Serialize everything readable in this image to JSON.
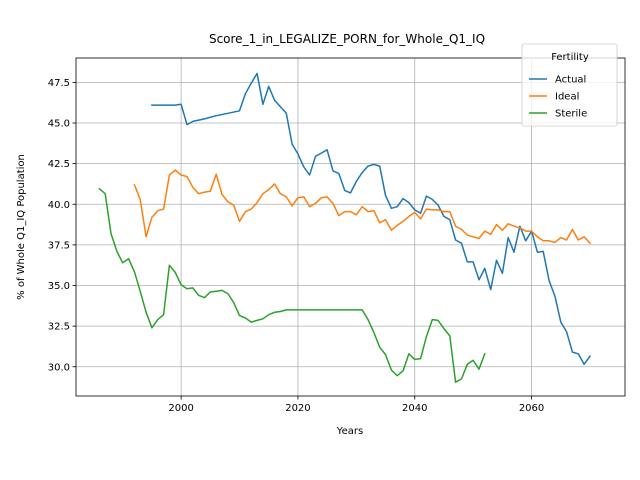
{
  "chart_data": {
    "type": "line",
    "title": "Score_1_in_LEGALIZE_PORN_for_Whole_Q1_IQ",
    "xlabel": "Years",
    "ylabel": "% of Whole Q1_IQ Population",
    "xlim": [
      1982,
      2076
    ],
    "ylim": [
      28.2,
      49.0
    ],
    "xticks": [
      2000,
      2020,
      2040,
      2060
    ],
    "yticks": [
      30.0,
      32.5,
      35.0,
      37.5,
      40.0,
      42.5,
      45.0,
      47.5
    ],
    "grid": true,
    "legend": {
      "title": "Fertility",
      "placement": "top-right"
    },
    "series": [
      {
        "name": "Actual",
        "color": "#1f77b4",
        "x": [
          1995,
          1996,
          1997,
          1998,
          1999,
          2000,
          2001,
          2002,
          2004,
          2006,
          2008,
          2010,
          2011,
          2012,
          2013,
          2014,
          2015,
          2016,
          2017,
          2018,
          2019,
          2020,
          2021,
          2022,
          2023,
          2024,
          2025,
          2026,
          2027,
          2028,
          2029,
          2030,
          2031,
          2032,
          2033,
          2034,
          2035,
          2036,
          2037,
          2038,
          2039,
          2040,
          2041,
          2042,
          2043,
          2044,
          2045,
          2046,
          2047,
          2048,
          2049,
          2050,
          2051,
          2052,
          2053,
          2054,
          2055,
          2056,
          2057,
          2058,
          2059,
          2060,
          2061,
          2062,
          2063,
          2064,
          2065,
          2066,
          2067,
          2068,
          2069,
          2070
        ],
        "y": [
          46.1,
          46.1,
          46.1,
          46.1,
          46.1,
          46.15,
          44.9,
          45.1,
          45.25,
          45.45,
          45.6,
          45.75,
          46.8,
          47.45,
          48.05,
          46.15,
          47.25,
          46.4,
          46.0,
          45.6,
          43.7,
          43.1,
          42.3,
          41.8,
          42.95,
          43.15,
          43.35,
          42.05,
          41.9,
          40.85,
          40.7,
          41.4,
          41.95,
          42.35,
          42.45,
          42.35,
          40.55,
          39.75,
          39.85,
          40.35,
          40.1,
          39.65,
          39.45,
          40.5,
          40.3,
          39.95,
          39.25,
          39.05,
          37.8,
          37.6,
          36.45,
          36.45,
          35.35,
          36.05,
          34.75,
          36.55,
          35.75,
          37.95,
          37.05,
          38.65,
          37.75,
          38.35,
          37.05,
          37.1,
          35.3,
          34.35,
          32.75,
          32.15,
          30.9,
          30.8,
          30.15,
          30.65
        ]
      },
      {
        "name": "Ideal",
        "color": "#ff7f0e",
        "x": [
          1992,
          1993,
          1994,
          1995,
          1996,
          1997,
          1998,
          1999,
          2000,
          2001,
          2002,
          2003,
          2004,
          2005,
          2006,
          2007,
          2008,
          2009,
          2010,
          2011,
          2012,
          2013,
          2014,
          2015,
          2016,
          2017,
          2018,
          2019,
          2020,
          2021,
          2022,
          2023,
          2024,
          2025,
          2026,
          2027,
          2028,
          2029,
          2030,
          2031,
          2032,
          2033,
          2034,
          2035,
          2036,
          2037,
          2038,
          2039,
          2040,
          2041,
          2042,
          2043,
          2044,
          2045,
          2046,
          2047,
          2048,
          2049,
          2050,
          2051,
          2052,
          2053,
          2054,
          2055,
          2056,
          2057,
          2058,
          2059,
          2060,
          2061,
          2062,
          2063,
          2064,
          2065,
          2066,
          2067,
          2068,
          2069,
          2070
        ],
        "y": [
          41.2,
          40.3,
          38.0,
          39.2,
          39.6,
          39.7,
          41.8,
          42.1,
          41.8,
          41.7,
          41.05,
          40.65,
          40.75,
          40.8,
          41.85,
          40.6,
          40.15,
          39.95,
          38.95,
          39.55,
          39.7,
          40.1,
          40.65,
          40.9,
          41.25,
          40.65,
          40.45,
          39.9,
          40.4,
          40.45,
          39.85,
          40.05,
          40.4,
          40.45,
          40.05,
          39.3,
          39.55,
          39.55,
          39.35,
          39.85,
          39.55,
          39.6,
          38.85,
          39.05,
          38.4,
          38.7,
          38.95,
          39.25,
          39.5,
          39.1,
          39.7,
          39.65,
          39.65,
          39.55,
          39.55,
          38.65,
          38.45,
          38.1,
          38.0,
          37.9,
          38.35,
          38.15,
          38.75,
          38.4,
          38.8,
          38.65,
          38.55,
          38.35,
          38.35,
          38.0,
          37.75,
          37.75,
          37.65,
          37.95,
          37.8,
          38.45,
          37.8,
          38.0,
          37.6
        ]
      },
      {
        "name": "Sterile",
        "color": "#2ca02c",
        "x": [
          1986,
          1987,
          1988,
          1989,
          1990,
          1991,
          1992,
          1993,
          1994,
          1995,
          1996,
          1997,
          1998,
          1999,
          2000,
          2001,
          2002,
          2003,
          2004,
          2005,
          2006,
          2007,
          2008,
          2009,
          2010,
          2011,
          2012,
          2013,
          2014,
          2015,
          2016,
          2017,
          2018,
          2019,
          2020,
          2021,
          2022,
          2023,
          2024,
          2025,
          2026,
          2027,
          2028,
          2029,
          2030,
          2031,
          2032,
          2033,
          2034,
          2035,
          2036,
          2037,
          2038,
          2039,
          2040,
          2041,
          2042,
          2043,
          2044,
          2045,
          2046,
          2047,
          2048,
          2049,
          2050,
          2051,
          2052
        ],
        "y": [
          40.95,
          40.65,
          38.2,
          37.1,
          36.4,
          36.65,
          35.85,
          34.65,
          33.35,
          32.4,
          32.9,
          33.2,
          36.25,
          35.8,
          35.05,
          34.8,
          34.85,
          34.4,
          34.25,
          34.6,
          34.65,
          34.7,
          34.5,
          33.95,
          33.15,
          33.0,
          32.75,
          32.85,
          32.95,
          33.2,
          33.35,
          33.4,
          33.5,
          33.5,
          33.5,
          33.5,
          33.5,
          33.5,
          33.5,
          33.5,
          33.5,
          33.5,
          33.5,
          33.5,
          33.5,
          33.5,
          32.9,
          32.1,
          31.2,
          30.75,
          29.8,
          29.45,
          29.75,
          30.8,
          30.45,
          30.5,
          31.85,
          32.9,
          32.85,
          32.35,
          31.9,
          29.05,
          29.25,
          30.15,
          30.4,
          29.85,
          30.8
        ]
      }
    ]
  }
}
